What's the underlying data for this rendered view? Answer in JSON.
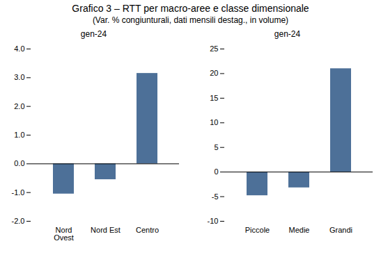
{
  "chart_data": [
    {
      "type": "bar",
      "title": "Grafico 3 – RTT per macro-aree e classe dimensionale",
      "subtitle": "(Var. % congiunturali, dati mensili destag., in volume)",
      "annotation": "gen-24",
      "categories": [
        "Nord\nOvest",
        "Nord Est",
        "Centro"
      ],
      "values": [
        -1.05,
        -0.55,
        3.15
      ],
      "color": "#4d7098",
      "ylim": [
        -2.0,
        4.0
      ],
      "yticks": [
        {
          "value": -2.0,
          "label": "-2.0"
        },
        {
          "value": -1.0,
          "label": "-1.0"
        },
        {
          "value": 0.0,
          "label": "0.0"
        },
        {
          "value": 1.0,
          "label": "1.0"
        },
        {
          "value": 2.0,
          "label": "2.0"
        },
        {
          "value": 3.0,
          "label": "3.0"
        },
        {
          "value": 4.0,
          "label": "4.0"
        }
      ],
      "grid": false
    },
    {
      "type": "bar",
      "annotation": "gen-24",
      "categories": [
        "Piccole",
        "Medie",
        "Grandi"
      ],
      "values": [
        -4.8,
        -3.2,
        21.0
      ],
      "color": "#4d7098",
      "ylim": [
        -10,
        25
      ],
      "yticks": [
        -10,
        -5,
        0,
        5,
        10,
        15,
        20,
        25
      ],
      "grid": false
    }
  ]
}
